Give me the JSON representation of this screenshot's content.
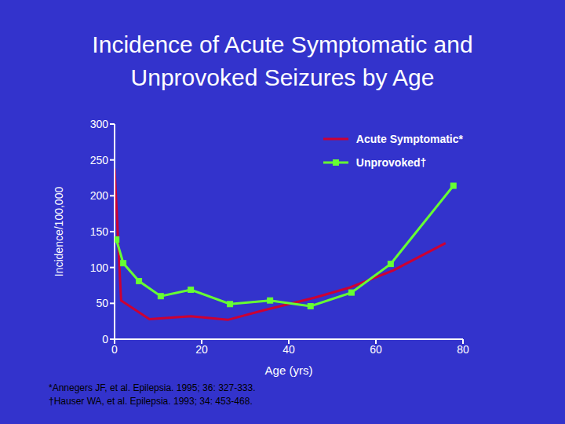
{
  "chart_data": {
    "type": "line",
    "title": "Incidence of Acute Symptomatic and Unprovoked Seizures by Age",
    "x_label": "Age (yrs)",
    "y_label": "Incidence/100,000",
    "xlim": [
      0,
      80
    ],
    "xticks": [
      0,
      20,
      40,
      60,
      80
    ],
    "ylim": [
      0,
      300
    ],
    "yticks": [
      0,
      50,
      100,
      150,
      200,
      250,
      300
    ],
    "grid": false,
    "legend": "top-right",
    "series": [
      {
        "name": "Acute Symptomatic*",
        "color": "#cc0033",
        "marker": "none",
        "x": [
          0,
          1.5,
          8,
          17.5,
          26,
          34,
          46,
          54,
          64,
          76
        ],
        "values": [
          238,
          54,
          28,
          32,
          27,
          40,
          58,
          72,
          96,
          134
        ]
      },
      {
        "name": "Unprovoked†",
        "color": "#66ff33",
        "marker": "square",
        "x": [
          0.4,
          2,
          5.6,
          10.6,
          17.5,
          26.5,
          35.7,
          45,
          54.4,
          63.4,
          77.8
        ],
        "values": [
          139,
          106,
          81,
          60,
          69,
          49,
          54,
          46,
          65,
          105,
          214
        ]
      }
    ],
    "annotations": [
      "*Annegers JF, et al. Epilepsia. 1995; 36: 327-333.",
      "†Hauser WA, et al. Epilepsia. 1993; 34: 453-468."
    ]
  }
}
